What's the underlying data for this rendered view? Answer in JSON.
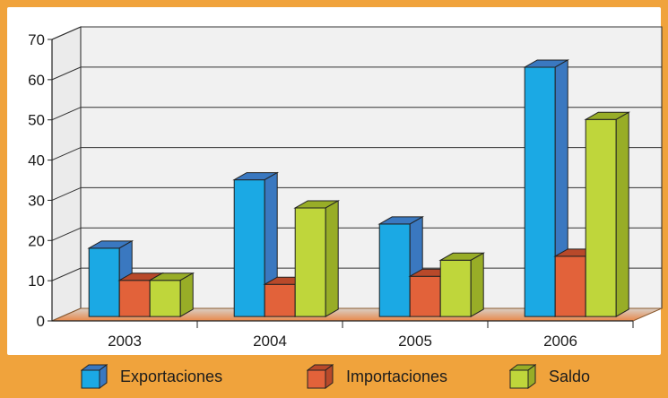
{
  "chart_data": {
    "type": "bar",
    "categories": [
      "2003",
      "2004",
      "2005",
      "2006"
    ],
    "series": [
      {
        "name": "Exportaciones",
        "values": [
          17,
          34,
          23,
          62
        ],
        "color": "#1ba9e4",
        "side": "#3a78c0"
      },
      {
        "name": "Importaciones",
        "values": [
          9,
          8,
          10,
          15
        ],
        "color": "#e2623a",
        "side": "#b8492a"
      },
      {
        "name": "Saldo",
        "values": [
          9,
          27,
          14,
          49
        ],
        "color": "#bfd63b",
        "side": "#98ad27"
      }
    ],
    "ylim": [
      0,
      70
    ],
    "yticks": [
      0,
      10,
      20,
      30,
      40,
      50,
      60,
      70
    ],
    "grid": true,
    "legend_position": "bottom",
    "background": "#f0a33c",
    "floor_color": "#e8884a"
  }
}
